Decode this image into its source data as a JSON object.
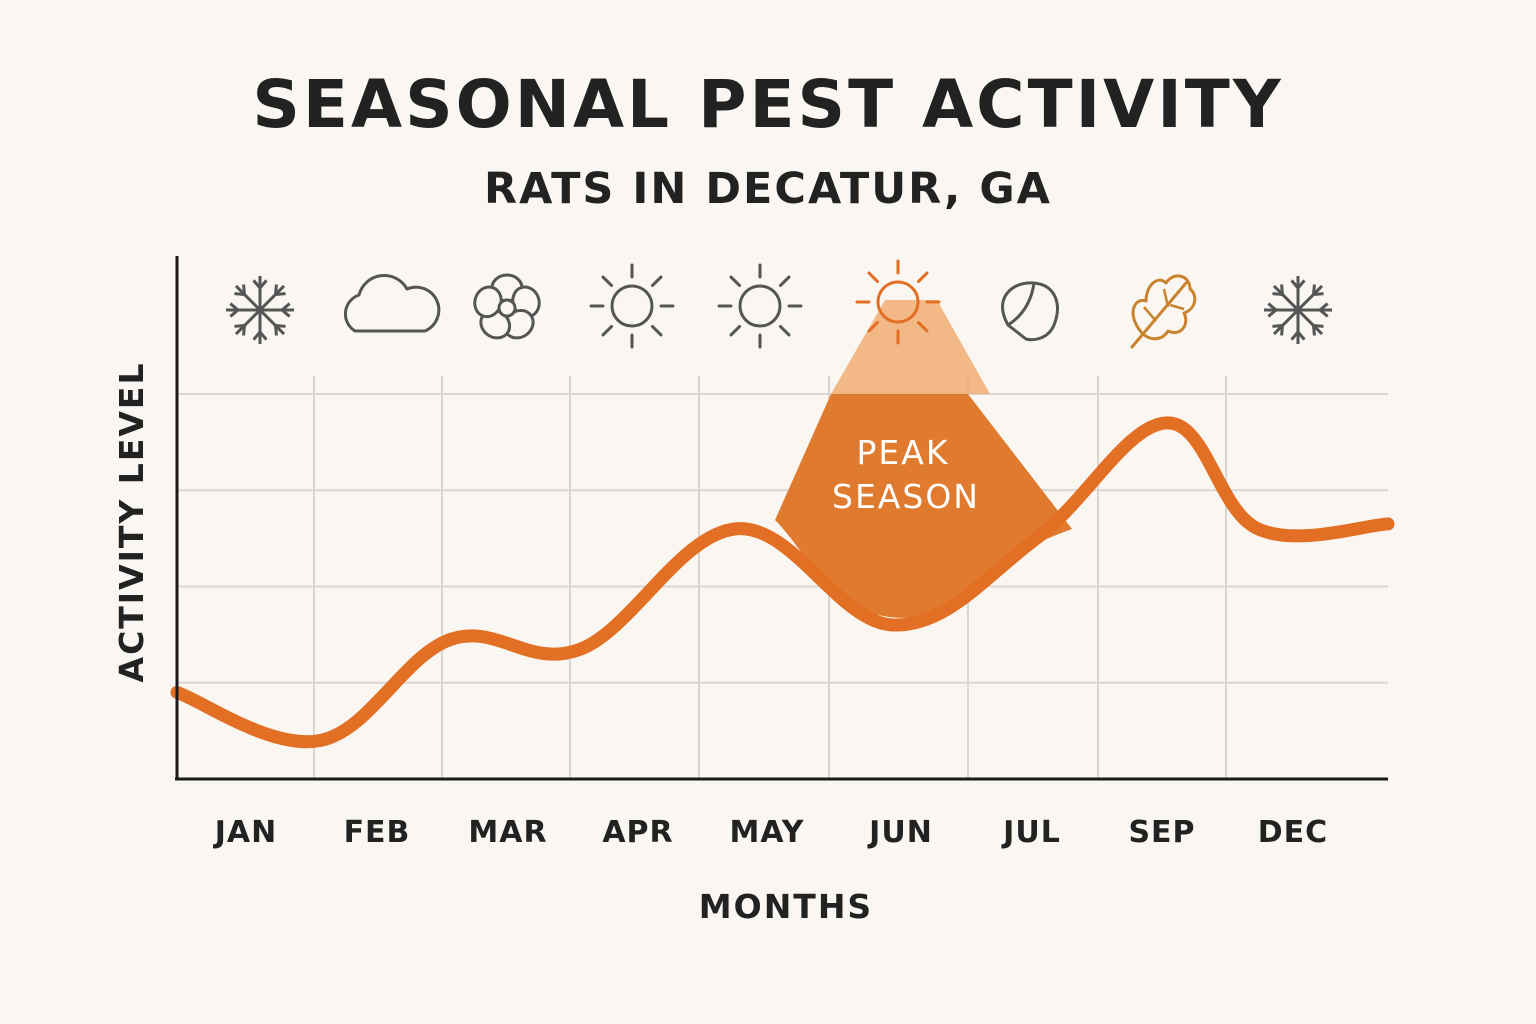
{
  "chart_data": {
    "type": "line",
    "title": "SEASONAL PEST ACTIVITY",
    "subtitle": "RATS IN DECATUR, GA",
    "xlabel": "MONTHS",
    "ylabel": "ACTIVITY LEVEL",
    "categories": [
      "JAN",
      "FEB",
      "MAR",
      "APR",
      "MAY",
      "JUN",
      "JUL",
      "SEP",
      "DEC"
    ],
    "x": [
      0,
      1.1,
      2.1,
      3.1,
      4.3,
      5.5,
      6.6,
      7.6,
      8.3,
      9.3
    ],
    "values": [
      0.9,
      0.4,
      1.45,
      1.35,
      2.6,
      1.6,
      2.5,
      3.7,
      2.6,
      2.65
    ],
    "ylim": [
      0,
      4
    ],
    "grid": true,
    "highlight": {
      "label": "PEAK SEASON",
      "category": "JUN",
      "color": "#e07a2e"
    },
    "icons": [
      "snowflake-icon",
      "cloud-icon",
      "flower-icon",
      "sun-icon",
      "sun-icon",
      "sun-icon",
      "leaf-icon",
      "autumn-leaf-icon",
      "snowflake-icon"
    ],
    "colors": {
      "line": "#e36f24",
      "peak_fill": "#e07a2e",
      "peak_light": "#f0ae73",
      "icon_gray": "#555555",
      "icon_accent": "#e36f24",
      "icon_autumn": "#c9822e",
      "grid": "#d9d6d1",
      "axis": "#1a1a1a"
    }
  }
}
